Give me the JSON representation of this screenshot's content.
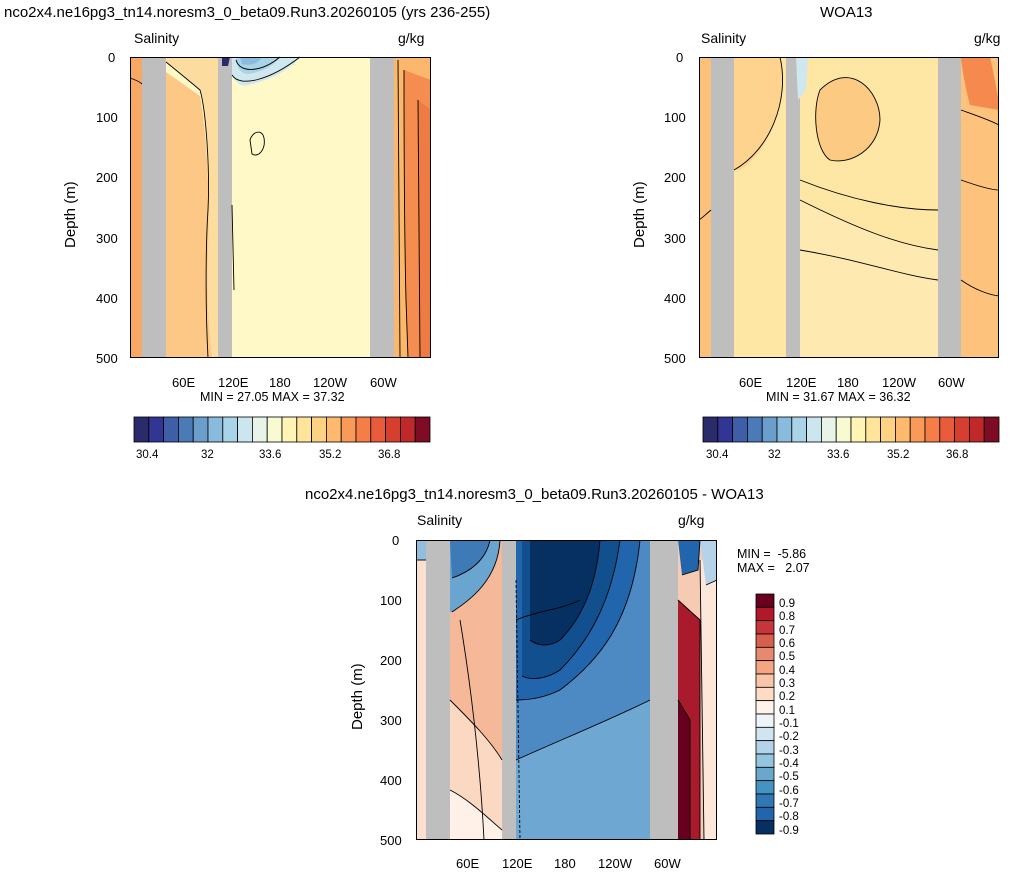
{
  "chart_data": [
    {
      "type": "heatmap",
      "title": "nco2x4.ne16pg3_tn14.noresm3_0_beta09.Run3.20260105 (yrs 236-255)",
      "left_label": "Salinity",
      "units": "g/kg",
      "ylabel": "Depth (m)",
      "ylim": [
        500,
        0
      ],
      "y_ticks": [
        "0",
        "100",
        "200",
        "300",
        "400",
        "500"
      ],
      "x_ticks": [
        "60E",
        "120E",
        "180",
        "120W",
        "60W"
      ],
      "stats": "MIN =  27.05  MAX =  37.32",
      "colorbar_labels": [
        "30.4",
        "32",
        "33.6",
        "35.2",
        "36.8"
      ],
      "colorbar_orientation": "horizontal"
    },
    {
      "type": "heatmap",
      "title": "WOA13",
      "left_label": "Salinity",
      "units": "g/kg",
      "ylabel": "Depth (m)",
      "ylim": [
        500,
        0
      ],
      "y_ticks": [
        "0",
        "100",
        "200",
        "300",
        "400",
        "500"
      ],
      "x_ticks": [
        "60E",
        "120E",
        "180",
        "120W",
        "60W"
      ],
      "stats": "MIN =  31.67  MAX =  36.32",
      "colorbar_labels": [
        "30.4",
        "32",
        "33.6",
        "35.2",
        "36.8"
      ],
      "colorbar_orientation": "horizontal"
    },
    {
      "type": "heatmap",
      "title": "nco2x4.ne16pg3_tn14.noresm3_0_beta09.Run3.20260105 - WOA13",
      "left_label": "Salinity",
      "units": "g/kg",
      "ylabel": "Depth (m)",
      "ylim": [
        500,
        0
      ],
      "y_ticks": [
        "0",
        "100",
        "200",
        "300",
        "400",
        "500"
      ],
      "x_ticks": [
        "60E",
        "120E",
        "180",
        "120W",
        "60W"
      ],
      "stats_min": "MIN =  -5.86",
      "stats_max": "MAX =   2.07",
      "colorbar_labels": [
        "0.9",
        "0.8",
        "0.7",
        "0.6",
        "0.5",
        "0.4",
        "0.3",
        "0.2",
        "0.1",
        "-0.1",
        "-0.2",
        "-0.3",
        "-0.4",
        "-0.5",
        "-0.6",
        "-0.7",
        "-0.8",
        "-0.9"
      ],
      "colorbar_orientation": "vertical"
    }
  ],
  "colors": {
    "seq_palette": [
      "#2b2a6b",
      "#313695",
      "#3e5ea8",
      "#4a7bb7",
      "#6a9ecb",
      "#89bcdc",
      "#a9d3e7",
      "#cbe6ef",
      "#e8f4e8",
      "#f8fbd2",
      "#fff4b3",
      "#fee59a",
      "#fdd283",
      "#fdb96d",
      "#f99a58",
      "#f47d48",
      "#e85c3c",
      "#d63f2e",
      "#c0282a",
      "#7f0c25"
    ],
    "div_palette": [
      "#67001f",
      "#b2182b",
      "#c7343a",
      "#d6604d",
      "#e7896e",
      "#f4a582",
      "#f9c5a8",
      "#fddbc7",
      "#fff2ea",
      "#eef5fa",
      "#d1e5f0",
      "#b4d3e8",
      "#92c5de",
      "#6ba6cf",
      "#4393c3",
      "#2f78b5",
      "#2166ac",
      "#053061"
    ],
    "land": "#bebebe"
  }
}
